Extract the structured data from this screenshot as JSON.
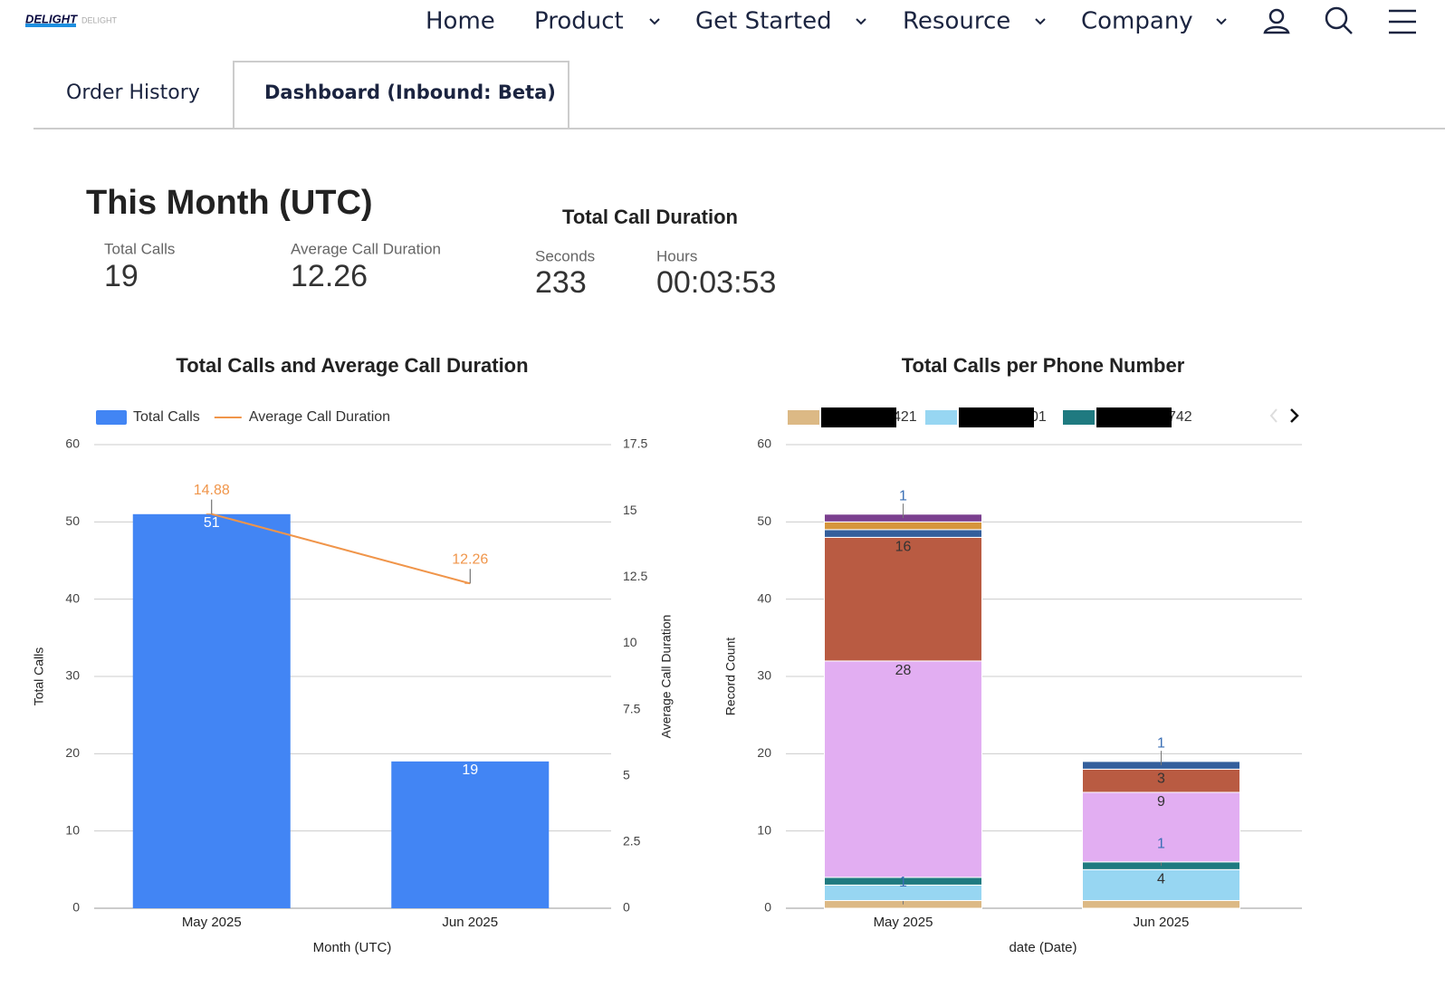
{
  "nav": {
    "logo": "DELIGHT",
    "items": [
      "Home",
      "Product",
      "Get Started",
      "Resource",
      "Company"
    ]
  },
  "tabs": [
    "Order History",
    "Dashboard (Inbound: Beta)"
  ],
  "summary": {
    "title": "This Month (UTC)",
    "stats": [
      {
        "label": "Total Calls",
        "value": 19
      },
      {
        "label": "Average Call Duration",
        "value": 12.26
      }
    ],
    "duration": {
      "title": "Total Call Duration",
      "stats": [
        {
          "label": "Seconds",
          "value": 233
        },
        {
          "label": "Hours",
          "value": "00:03:53"
        }
      ]
    }
  },
  "chart_data": [
    {
      "type": "bar",
      "title": "Total Calls and Average Call Duration",
      "categories": [
        "May 2025",
        "Jun 2025"
      ],
      "series": [
        {
          "name": "Total Calls",
          "color": "#4285f4",
          "values": [
            51,
            19
          ],
          "labels": true
        },
        {
          "name": "Average Call Duration",
          "type": "line",
          "axis": "y2",
          "color": "#f0954a",
          "values": [
            14.88,
            12.26
          ],
          "labels": true
        }
      ],
      "ylim": [
        0,
        60
      ],
      "yticks": [
        0,
        10,
        20,
        30,
        40,
        50,
        60
      ],
      "y2lim": [
        0,
        17.5
      ],
      "y2ticks": [
        0,
        2.5,
        5,
        7.5,
        10,
        12.5,
        15,
        17.5
      ],
      "xlabel": "Month (UTC)",
      "ylabel": "Total Calls",
      "y2label": "Average Call Duration",
      "grid": true
    },
    {
      "type": "bar",
      "title": "Total Calls per Phone Number",
      "stacked": true,
      "categories": [
        "May 2025",
        "Jun 2025"
      ],
      "series": [
        {
          "name": "421",
          "color": "#dcb985",
          "values": [
            1,
            1
          ],
          "value_labels": [
            "1",
            null
          ]
        },
        {
          "name": "01",
          "color": "#97d6f2",
          "values": [
            2,
            4
          ],
          "value_labels": [
            null,
            "4"
          ]
        },
        {
          "name": "742",
          "color": "#1f7a80",
          "values": [
            1,
            1
          ],
          "value_labels": [
            null,
            "1"
          ]
        },
        {
          "color": "#e2aef2",
          "values": [
            28,
            9
          ],
          "value_labels": [
            "28",
            "9"
          ]
        },
        {
          "color": "#b95b42",
          "values": [
            16,
            3
          ],
          "value_labels": [
            "16",
            "3"
          ]
        },
        {
          "color": "#345f9c",
          "values": [
            1,
            1
          ],
          "value_labels": [
            null,
            "1"
          ]
        },
        {
          "color": "#d6963c",
          "values": [
            1,
            null
          ],
          "value_labels": [
            null,
            null
          ]
        },
        {
          "color": "#7b3f8f",
          "values": [
            1,
            null
          ],
          "value_labels": [
            "1",
            null
          ]
        }
      ],
      "ylim": [
        0,
        60
      ],
      "yticks": [
        0,
        10,
        20,
        30,
        40,
        50,
        60
      ],
      "xlabel": "date (Date)",
      "ylabel": "Record Count",
      "grid": true
    }
  ]
}
